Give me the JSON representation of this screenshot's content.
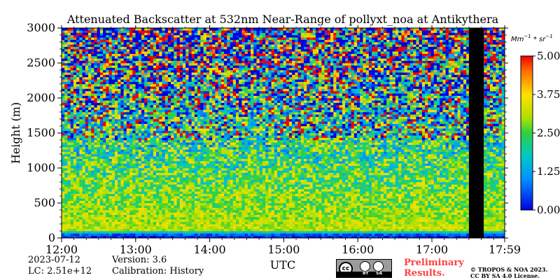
{
  "chart_data": {
    "type": "heatmap",
    "title": "Attenuated Backscatter at 532nm Near-Range of pollyxt_noa at Antikythera",
    "xlabel": "UTC",
    "ylabel": "Height (m)",
    "x_ticks": [
      "12:00",
      "13:00",
      "14:00",
      "15:00",
      "16:00",
      "17:00",
      "17:59"
    ],
    "x_tick_values": [
      12.0,
      13.0,
      14.0,
      15.0,
      16.0,
      17.0,
      17.983
    ],
    "xlim": [
      12.0,
      17.983
    ],
    "y_ticks": [
      "0",
      "500",
      "1000",
      "1500",
      "2000",
      "2500",
      "3000"
    ],
    "y_tick_values": [
      0,
      500,
      1000,
      1500,
      2000,
      2500,
      3000
    ],
    "ylim": [
      0,
      3000
    ],
    "no_data_intervals": [
      [
        17.5,
        17.7
      ]
    ],
    "colorbar": {
      "unit": "Mm^-1*sr^-1",
      "min": 0.0,
      "max": 5.0,
      "tick_labels": [
        "0.00",
        "1.25",
        "2.50",
        "3.75",
        "5.00"
      ],
      "tick_values": [
        0.0,
        1.25,
        2.5,
        3.75,
        5.0
      ]
    },
    "profile": [
      {
        "height": 40,
        "value": 0.3
      },
      {
        "height": 120,
        "value": 3.2
      },
      {
        "height": 300,
        "value": 3.0
      },
      {
        "height": 600,
        "value": 2.8
      },
      {
        "height": 1000,
        "value": 2.4
      },
      {
        "height": 1500,
        "value": 2.1
      },
      {
        "height": 2000,
        "value": 2.0
      },
      {
        "height": 2500,
        "value": 2.0
      },
      {
        "height": 3000,
        "value": 2.0
      }
    ]
  },
  "info": {
    "date": "2023-07-12",
    "lc": "LC: 2.51e+12",
    "version": "Version: 3.6",
    "calibration": "Calibration: History"
  },
  "badge": {
    "cc_text": "cc",
    "by_label": "BY",
    "sa_label": "SA"
  },
  "preliminary": [
    "Preliminary",
    "Results."
  ],
  "copyright": [
    "© TROPOS & NOA 2023.",
    "CC BY SA 4.0 License."
  ],
  "colors": {
    "preliminary": "#ff4040",
    "no_data": "#000000"
  }
}
